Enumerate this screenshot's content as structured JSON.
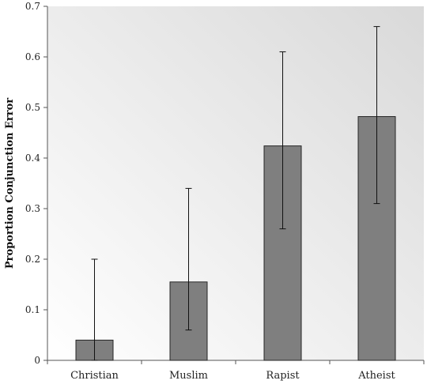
{
  "chart_data": {
    "type": "bar",
    "title": "",
    "xlabel": "",
    "ylabel": "Proportion Conjunction Error",
    "categories": [
      "Christian",
      "Muslim",
      "Rapist",
      "Atheist"
    ],
    "values": [
      0.04,
      0.155,
      0.424,
      0.482
    ],
    "error_low": [
      0.0,
      0.06,
      0.26,
      0.31
    ],
    "error_high": [
      0.2,
      0.34,
      0.61,
      0.66
    ],
    "ylim": [
      0,
      0.7
    ],
    "yticks": [
      "0",
      "0.1",
      "0.2",
      "0.3",
      "0.4",
      "0.5",
      "0.6",
      "0.7"
    ],
    "grid": false,
    "legend": "none",
    "colors": {
      "bar_fill": "#7f7f7f",
      "bar_stroke": "#262626",
      "plot_bg_light": "#ffffff",
      "plot_bg_dark": "#d9d9d9",
      "axis": "#555555"
    }
  }
}
